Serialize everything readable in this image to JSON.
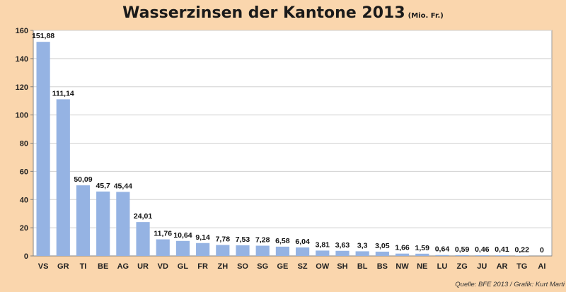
{
  "chart_data": {
    "type": "bar",
    "title": "Wasserzinsen der Kantone 2013",
    "subtitle": "(Mio. Fr.)",
    "source": "Quelle: BFE 2013 / Grafik: Kurt Marti",
    "categories": [
      "VS",
      "GR",
      "TI",
      "BE",
      "AG",
      "UR",
      "VD",
      "GL",
      "FR",
      "ZH",
      "SO",
      "SG",
      "GE",
      "SZ",
      "OW",
      "SH",
      "BL",
      "BS",
      "NW",
      "NE",
      "LU",
      "ZG",
      "JU",
      "AR",
      "TG",
      "AI"
    ],
    "values": [
      151.88,
      111.14,
      50.09,
      45.7,
      45.44,
      24.01,
      11.76,
      10.64,
      9.14,
      7.78,
      7.53,
      7.28,
      6.58,
      6.04,
      3.81,
      3.63,
      3.3,
      3.05,
      1.66,
      1.59,
      0.64,
      0.59,
      0.46,
      0.41,
      0.22,
      0
    ],
    "value_labels": [
      "151,88",
      "111,14",
      "50,09",
      "45,7",
      "45,44",
      "24,01",
      "11,76",
      "10,64",
      "9,14",
      "7,78",
      "7,53",
      "7,28",
      "6,58",
      "6,04",
      "3,81",
      "3,63",
      "3,3",
      "3,05",
      "1,66",
      "1,59",
      "0,64",
      "0,59",
      "0,46",
      "0,41",
      "0,22",
      "0"
    ],
    "yticks": [
      0,
      20,
      40,
      60,
      80,
      100,
      120,
      140,
      160
    ],
    "ylim": [
      0,
      160
    ],
    "xlabel": "",
    "ylabel": "",
    "grid": true,
    "bar_color": "#95b3e3",
    "plot_background": "#ffffff",
    "background": "#fad6ad"
  }
}
